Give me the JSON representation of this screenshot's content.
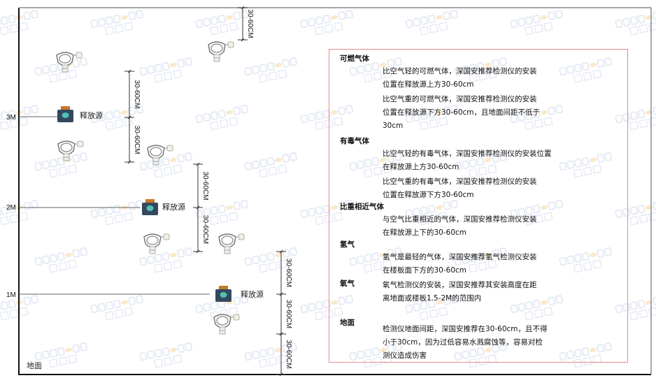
{
  "watermark": {
    "brand": "SINGOAN",
    "chinese": "深国安"
  },
  "levels": [
    {
      "label": "3M"
    },
    {
      "label": "2M"
    },
    {
      "label": "1M"
    }
  ],
  "floor_label": "地面",
  "source_label": "释放源",
  "dimension_label": "30-60CM",
  "colors": {
    "frame": "#111111",
    "info_border": "#e88a8a",
    "source_body": "#34495e",
    "source_face": "#4fc1b5",
    "source_cap": "#c8782a"
  },
  "info": {
    "sections": [
      {
        "title": "可燃气体",
        "paragraphs": [
          [
            "比空气轻的可燃气体，深国安推荐检测仪的安装",
            "位置在释放源上方30-60cm"
          ],
          [
            "比空气重的可燃气体，深国安推荐检测仪的安装",
            "位置在释放源下方30-60cm，且地面间距不低于",
            "30cm"
          ]
        ]
      },
      {
        "title": "有毒气体",
        "paragraphs": [
          [
            "比空气轻的有毒气体，深国安推荐检测仪的安装位置",
            "在释放源上方30-60cm"
          ],
          [
            "比空气重的有毒气体，深国安推荐检测仪的安装",
            "位置在释放源下方30-60cm"
          ]
        ]
      },
      {
        "title": "比重相近气体",
        "paragraphs": [
          [
            "与空气比重相近的气体，深国安推荐检测仪安装",
            "在释放源上下的30-60cm"
          ]
        ]
      },
      {
        "title": "氢气",
        "paragraphs": [
          [
            "氢气是最轻的气体，深国安推荐氢气检测仪安装",
            "在楼板面下方的30-60cm"
          ]
        ]
      },
      {
        "title": "氧气",
        "paragraphs": [
          [
            "氧气检测仪的安装，深国安推荐其安装高度在距",
            "离地面或楼板1.5-2M的范围内"
          ]
        ]
      },
      {
        "title": "地面",
        "paragraphs": [
          [
            "检测仪地面间距，深国安推荐在30-60cm，且不得",
            "小于30cm，因为过低容易水溅腐蚀等，容易对检",
            "测仪造成伤害"
          ]
        ]
      }
    ]
  }
}
